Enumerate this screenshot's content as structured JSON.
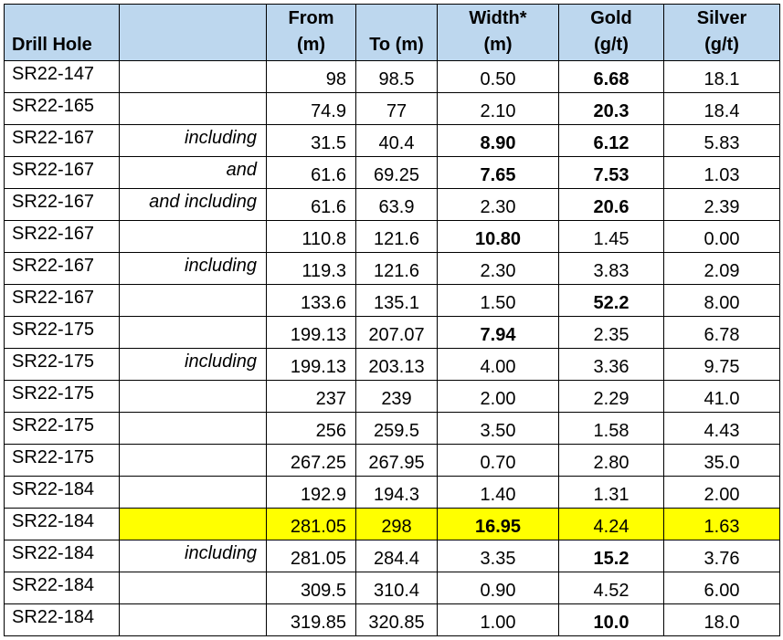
{
  "table": {
    "headers": {
      "hole": "Drill Hole",
      "qualifier": "",
      "from": [
        "From",
        "(m)"
      ],
      "to": "To (m)",
      "width": [
        "Width*",
        "(m)"
      ],
      "gold": [
        "Gold",
        "(g/t)"
      ],
      "silver": [
        "Silver",
        "(g/t)"
      ]
    },
    "rows": [
      {
        "hole": "SR22-147",
        "qualifier": "",
        "from": "98",
        "to": "98.5",
        "width": "0.50",
        "gold": "6.68",
        "silver": "18.1"
      },
      {
        "hole": "SR22-165",
        "qualifier": "",
        "from": "74.9",
        "to": "77",
        "width": "2.10",
        "gold": "20.3",
        "silver": "18.4"
      },
      {
        "hole": "SR22-167",
        "qualifier": "including",
        "from": "31.5",
        "to": "40.4",
        "width": "8.90",
        "gold": "6.12",
        "silver": "5.83"
      },
      {
        "hole": "SR22-167",
        "qualifier": "and",
        "from": "61.6",
        "to": "69.25",
        "width": "7.65",
        "gold": "7.53",
        "silver": "1.03"
      },
      {
        "hole": "SR22-167",
        "qualifier": "and including",
        "from": "61.6",
        "to": "63.9",
        "width": "2.30",
        "gold": "20.6",
        "silver": "2.39"
      },
      {
        "hole": "SR22-167",
        "qualifier": "",
        "from": "110.8",
        "to": "121.6",
        "width": "10.80",
        "gold": "1.45",
        "silver": "0.00"
      },
      {
        "hole": "SR22-167",
        "qualifier": "including",
        "from": "119.3",
        "to": "121.6",
        "width": "2.30",
        "gold": "3.83",
        "silver": "2.09"
      },
      {
        "hole": "SR22-167",
        "qualifier": "",
        "from": "133.6",
        "to": "135.1",
        "width": "1.50",
        "gold": "52.2",
        "silver": "8.00"
      },
      {
        "hole": "SR22-175",
        "qualifier": "",
        "from": "199.13",
        "to": "207.07",
        "width": "7.94",
        "gold": "2.35",
        "silver": "6.78"
      },
      {
        "hole": "SR22-175",
        "qualifier": "including",
        "from": "199.13",
        "to": "203.13",
        "width": "4.00",
        "gold": "3.36",
        "silver": "9.75"
      },
      {
        "hole": "SR22-175",
        "qualifier": "",
        "from": "237",
        "to": "239",
        "width": "2.00",
        "gold": "2.29",
        "silver": "41.0"
      },
      {
        "hole": "SR22-175",
        "qualifier": "",
        "from": "256",
        "to": "259.5",
        "width": "3.50",
        "gold": "1.58",
        "silver": "4.43"
      },
      {
        "hole": "SR22-175",
        "qualifier": "",
        "from": "267.25",
        "to": "267.95",
        "width": "0.70",
        "gold": "2.80",
        "silver": "35.0"
      },
      {
        "hole": "SR22-184",
        "qualifier": "",
        "from": "192.9",
        "to": "194.3",
        "width": "1.40",
        "gold": "1.31",
        "silver": "2.00"
      },
      {
        "hole": "SR22-184",
        "qualifier": "",
        "from": "281.05",
        "to": "298",
        "width": "16.95",
        "gold": "4.24",
        "silver": "1.63"
      },
      {
        "hole": "SR22-184",
        "qualifier": "including",
        "from": "281.05",
        "to": "284.4",
        "width": "3.35",
        "gold": "15.2",
        "silver": "3.76"
      },
      {
        "hole": "SR22-184",
        "qualifier": "",
        "from": "309.5",
        "to": "310.4",
        "width": "0.90",
        "gold": "4.52",
        "silver": "6.00"
      },
      {
        "hole": "SR22-184",
        "qualifier": "",
        "from": "319.85",
        "to": "320.85",
        "width": "1.00",
        "gold": "10.0",
        "silver": "18.0"
      }
    ],
    "bold_width": [
      "8.90",
      "7.65",
      "10.80",
      "7.94",
      "16.95"
    ],
    "bold_gold": [
      "6.68",
      "20.3",
      "6.12",
      "7.53",
      "20.6",
      "52.2",
      "15.2",
      "10.0"
    ],
    "highlight_row": 14,
    "colors": {
      "header_bg": "#bdd7ee",
      "highlight": "#ffff00",
      "border": "#000000"
    }
  }
}
